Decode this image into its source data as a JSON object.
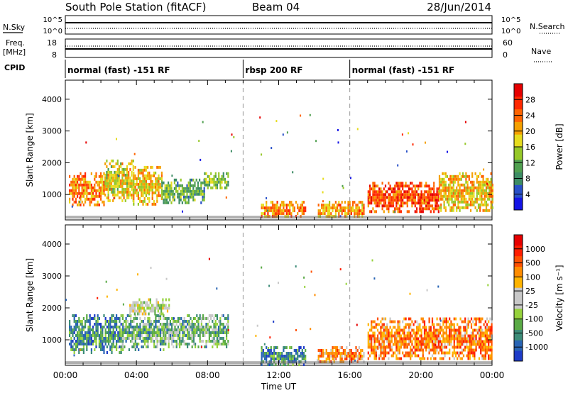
{
  "header": {
    "station": "South Pole Station (fitACF)",
    "beam": "Beam 04",
    "date": "28/Jun/2014"
  },
  "top_panels": {
    "nsky_label": "N.Sky",
    "nsearch_label": "N.Search",
    "noise_ticks": [
      "10^5",
      "10^0"
    ],
    "freq_label_line1": "Freq.",
    "freq_label_line2": "[MHz]",
    "freq_ticks": [
      "18",
      "8"
    ],
    "nave_label": "Nave",
    "nave_ticks": [
      "60",
      "0"
    ],
    "cpid_label": "CPID",
    "cpid_segments": [
      {
        "label": "normal (fast) -151 RF",
        "start_hour": 0,
        "end_hour": 10
      },
      {
        "label": "rbsp 200 RF",
        "start_hour": 10,
        "end_hour": 16
      },
      {
        "label": "normal (fast) -151 RF",
        "start_hour": 16,
        "end_hour": 24
      }
    ]
  },
  "colorbars": {
    "power": {
      "label": "Power [dB]",
      "ticks": [
        "4",
        "8",
        "12",
        "16",
        "20",
        "24",
        "28"
      ],
      "colors": [
        "#1414e6",
        "#2850c8",
        "#3c8c64",
        "#50a050",
        "#96c828",
        "#e6dc1e",
        "#f5a000",
        "#ff6400",
        "#ff2800",
        "#e60000"
      ]
    },
    "velocity": {
      "label": "Velocity [m s⁻¹]",
      "ticks": [
        "1000",
        "500",
        "100",
        "25",
        "-25",
        "-100",
        "-500",
        "-1000"
      ],
      "colors": [
        "#1e3cc8",
        "#2864b4",
        "#3c8c78",
        "#5aaa46",
        "#96d23c",
        "#c8c8c8",
        "#c8c8c8",
        "#ffb400",
        "#ff8c00",
        "#ff5000",
        "#ff1e00",
        "#e60000"
      ]
    }
  },
  "chart_data": [
    {
      "type": "heatmap",
      "name": "power",
      "ylabel": "Slant Range [km]",
      "yticks": [
        "1000",
        "2000",
        "3000",
        "4000"
      ],
      "ylim": [
        200,
        4600
      ],
      "xlim": [
        0,
        24
      ],
      "regions": [
        {
          "t0": 0.2,
          "t1": 2.2,
          "r0": 700,
          "r1": 1700,
          "level": 0.72
        },
        {
          "t0": 2.2,
          "t1": 3.8,
          "r0": 800,
          "r1": 2100,
          "level": 0.55
        },
        {
          "t0": 3.8,
          "t1": 5.4,
          "r0": 700,
          "r1": 1900,
          "level": 0.6
        },
        {
          "t0": 5.4,
          "t1": 7.8,
          "r0": 700,
          "r1": 1500,
          "level": 0.35
        },
        {
          "t0": 7.8,
          "t1": 9.2,
          "r0": 1200,
          "r1": 1700,
          "level": 0.4
        },
        {
          "t0": 11.0,
          "t1": 13.5,
          "r0": 300,
          "r1": 800,
          "level": 0.7
        },
        {
          "t0": 14.2,
          "t1": 16.8,
          "r0": 300,
          "r1": 800,
          "level": 0.65
        },
        {
          "t0": 17.0,
          "t1": 21.0,
          "r0": 500,
          "r1": 1400,
          "level": 0.8
        },
        {
          "t0": 21.0,
          "t1": 24.0,
          "r0": 500,
          "r1": 1700,
          "level": 0.6
        }
      ]
    },
    {
      "type": "heatmap",
      "name": "velocity",
      "ylabel": "Slant Range [km]",
      "yticks": [
        "1000",
        "2000",
        "3000",
        "4000"
      ],
      "ylim": [
        200,
        4600
      ],
      "xlim": [
        0,
        24
      ],
      "xticks": [
        "00:00",
        "04:00",
        "08:00",
        "12:00",
        "16:00",
        "20:00",
        "00:00"
      ],
      "xlabel": "Time UT",
      "regions": [
        {
          "t0": 0.2,
          "t1": 3.2,
          "r0": 600,
          "r1": 1800,
          "level": 0.22
        },
        {
          "t0": 3.2,
          "t1": 5.6,
          "r0": 700,
          "r1": 1800,
          "level": 0.3
        },
        {
          "t0": 3.6,
          "t1": 5.8,
          "r0": 1800,
          "r1": 2300,
          "level": 0.48
        },
        {
          "t0": 5.6,
          "t1": 9.2,
          "r0": 800,
          "r1": 1800,
          "level": 0.32
        },
        {
          "t0": 11.0,
          "t1": 13.5,
          "r0": 200,
          "r1": 800,
          "level": 0.2
        },
        {
          "t0": 14.2,
          "t1": 16.8,
          "r0": 300,
          "r1": 800,
          "level": 0.7
        },
        {
          "t0": 17.0,
          "t1": 24.0,
          "r0": 400,
          "r1": 1700,
          "level": 0.72
        }
      ]
    }
  ]
}
